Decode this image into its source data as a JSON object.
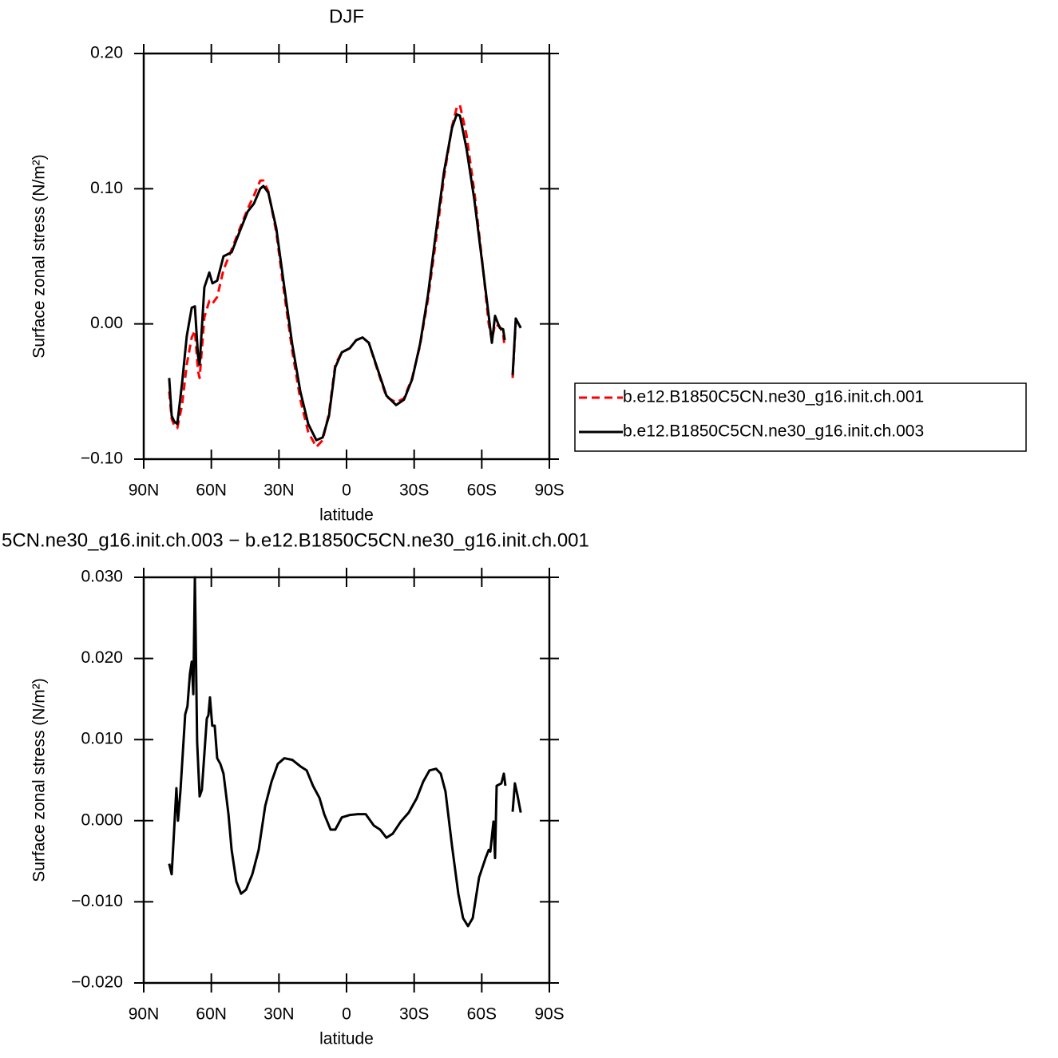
{
  "chart_data": [
    {
      "type": "line",
      "title": "DJF",
      "x_label": "latitude",
      "y_label": "Surface zonal stress (N/m²)",
      "xlim": [
        90,
        -90
      ],
      "xticks": [
        {
          "value": 90,
          "label": "90N"
        },
        {
          "value": 60,
          "label": "60N"
        },
        {
          "value": 30,
          "label": "30N"
        },
        0,
        {
          "value": -30,
          "label": "30S"
        },
        {
          "value": -60,
          "label": "60S"
        },
        {
          "value": -90,
          "label": "90S"
        }
      ],
      "ylim": [
        -0.1,
        0.2
      ],
      "yticks": [
        {
          "value": -0.1,
          "label": "−0.10"
        },
        {
          "value": 0,
          "label": "0.00"
        },
        {
          "value": 0.1,
          "label": "0.10"
        },
        {
          "value": 0.2,
          "label": "0.20"
        }
      ],
      "legend": "right",
      "x": [
        78.7,
        77.6,
        76.5,
        75.1,
        73.0,
        70.9,
        68.7,
        67.3,
        65.9,
        65.2,
        63.1,
        60.9,
        59.5,
        57.4,
        54.6,
        51.0,
        47.5,
        43.9,
        41.1,
        38.3,
        36.9,
        34.7,
        31.2,
        27.6,
        24.1,
        20.5,
        17.0,
        13.4,
        10.6,
        7.8,
        5.0,
        2.1,
        -1.4,
        -4.3,
        -7.1,
        -9.9,
        -13.5,
        -17.7,
        -22.0,
        -25.5,
        -29.1,
        -32.6,
        -36.1,
        -39.7,
        -43.2,
        -46.8,
        -48.9,
        -50.3,
        -53.2,
        -56.7,
        -60.3,
        -63.1,
        -64.5,
        -65.9,
        -68.0,
        -69.5,
        -70.2,
        -72.0,
        -73.7,
        -75.1,
        -77.3
      ],
      "series": [
        {
          "name": "b.e12.B1850C5CN.ne30_g16.init.ch.001",
          "color": "#ff0000",
          "linestyle": "dashed",
          "values": [
            -0.05,
            -0.07,
            -0.075,
            -0.077,
            -0.06,
            -0.03,
            -0.01,
            -0.005,
            -0.035,
            -0.04,
            0.005,
            0.017,
            0.015,
            0.02,
            0.04,
            0.055,
            0.07,
            0.085,
            0.095,
            0.106,
            0.106,
            0.098,
            0.068,
            0.022,
            -0.02,
            -0.056,
            -0.08,
            -0.091,
            -0.086,
            -0.066,
            -0.03,
            -0.021,
            -0.018,
            -0.012,
            -0.01,
            -0.014,
            -0.033,
            -0.054,
            -0.058,
            -0.055,
            -0.04,
            -0.016,
            0.018,
            0.062,
            0.108,
            0.146,
            0.16,
            0.162,
            0.14,
            0.098,
            0.045,
            0.0,
            -0.012,
            0.0,
            -0.002,
            -0.008,
            -0.017,
            null,
            -0.04,
            0.002,
            -0.002
          ]
        },
        {
          "name": "b.e12.B1850C5CN.ne30_g16.init.ch.003",
          "color": "#000000",
          "linestyle": "solid",
          "values": [
            -0.04,
            -0.068,
            -0.072,
            -0.074,
            -0.044,
            -0.009,
            0.012,
            0.013,
            -0.024,
            -0.03,
            0.027,
            0.038,
            0.03,
            0.032,
            0.05,
            0.053,
            0.068,
            0.083,
            0.089,
            0.1,
            0.102,
            0.097,
            0.071,
            0.027,
            -0.015,
            -0.05,
            -0.074,
            -0.086,
            -0.084,
            -0.068,
            -0.032,
            -0.021,
            -0.018,
            -0.012,
            -0.01,
            -0.014,
            -0.032,
            -0.053,
            -0.06,
            -0.056,
            -0.041,
            -0.015,
            0.021,
            0.068,
            0.112,
            0.145,
            0.155,
            0.154,
            0.13,
            0.092,
            0.044,
            0.006,
            -0.014,
            0.006,
            -0.003,
            -0.004,
            -0.012,
            null,
            -0.038,
            0.004,
            -0.003
          ]
        }
      ]
    },
    {
      "type": "line",
      "title": "5CN.ne30_g16.init.ch.003 − b.e12.B1850C5CN.ne30_g16.init.ch.001",
      "x_label": "latitude",
      "y_label": "Surface zonal stress (N/m²)",
      "xlim": [
        90,
        -90
      ],
      "xticks": [
        {
          "value": 90,
          "label": "90N"
        },
        {
          "value": 60,
          "label": "60N"
        },
        {
          "value": 30,
          "label": "30N"
        },
        0,
        {
          "value": -30,
          "label": "30S"
        },
        {
          "value": -60,
          "label": "60S"
        },
        {
          "value": -90,
          "label": "90S"
        }
      ],
      "ylim": [
        -0.02,
        0.03
      ],
      "yticks": [
        {
          "value": -0.02,
          "label": "−0.020"
        },
        {
          "value": -0.01,
          "label": "−0.010"
        },
        {
          "value": 0,
          "label": "0.000"
        },
        {
          "value": 0.01,
          "label": "0.010"
        },
        {
          "value": 0.02,
          "label": "0.020"
        },
        {
          "value": 0.03,
          "label": "0.030"
        }
      ],
      "x": [
        78.7,
        77.6,
        76.5,
        75.5,
        74.8,
        73.7,
        71.6,
        70.6,
        69.5,
        68.7,
        68.0,
        67.3,
        66.3,
        65.2,
        64.2,
        62.0,
        61.3,
        60.6,
        59.6,
        58.5,
        57.4,
        56.0,
        54.6,
        52.4,
        51.0,
        48.9,
        46.8,
        44.6,
        41.8,
        39.0,
        36.1,
        33.3,
        30.5,
        27.6,
        24.1,
        20.5,
        17.7,
        14.9,
        12.0,
        9.9,
        7.1,
        5.0,
        2.1,
        -1.4,
        -5.0,
        -8.5,
        -12.1,
        -14.9,
        -17.7,
        -20.5,
        -24.1,
        -27.6,
        -31.2,
        -34.0,
        -36.8,
        -39.7,
        -41.8,
        -43.9,
        -46.8,
        -49.6,
        -51.7,
        -53.9,
        -56.0,
        -58.8,
        -61.7,
        -63.1,
        -63.8,
        -65.2,
        -65.9,
        -66.6,
        -68.7,
        -69.8,
        -70.5,
        -72.0,
        -73.7,
        -74.7,
        -75.8,
        -77.3
      ],
      "series": [
        {
          "color": "#000000",
          "linestyle": "solid",
          "values": [
            -0.0053,
            -0.0066,
            -0.0011,
            0.004,
            0.0,
            0.0037,
            0.0131,
            0.0141,
            0.0181,
            0.0196,
            0.0156,
            0.03,
            0.0097,
            0.003,
            0.0038,
            0.0126,
            0.013,
            0.0152,
            0.0117,
            0.0117,
            0.0077,
            0.007,
            0.0058,
            0.0008,
            -0.0036,
            -0.0075,
            -0.009,
            -0.0085,
            -0.0066,
            -0.0036,
            0.0018,
            0.0048,
            0.007,
            0.0077,
            0.0075,
            0.0067,
            0.0062,
            0.0043,
            0.0028,
            0.0008,
            -0.0011,
            -0.0011,
            0.0004,
            0.0007,
            0.0008,
            0.0008,
            -0.0006,
            -0.0011,
            -0.0021,
            -0.0016,
            -0.0001,
            0.001,
            0.0028,
            0.0048,
            0.0062,
            0.0064,
            0.0058,
            0.0036,
            -0.0031,
            -0.009,
            -0.012,
            -0.013,
            -0.012,
            -0.007,
            -0.0046,
            -0.0036,
            -0.0038,
            -0.0001,
            -0.0046,
            0.0043,
            0.0046,
            0.0058,
            0.0043,
            null,
            0.0011,
            0.0046,
            0.0032,
            0.001
          ]
        }
      ]
    }
  ]
}
